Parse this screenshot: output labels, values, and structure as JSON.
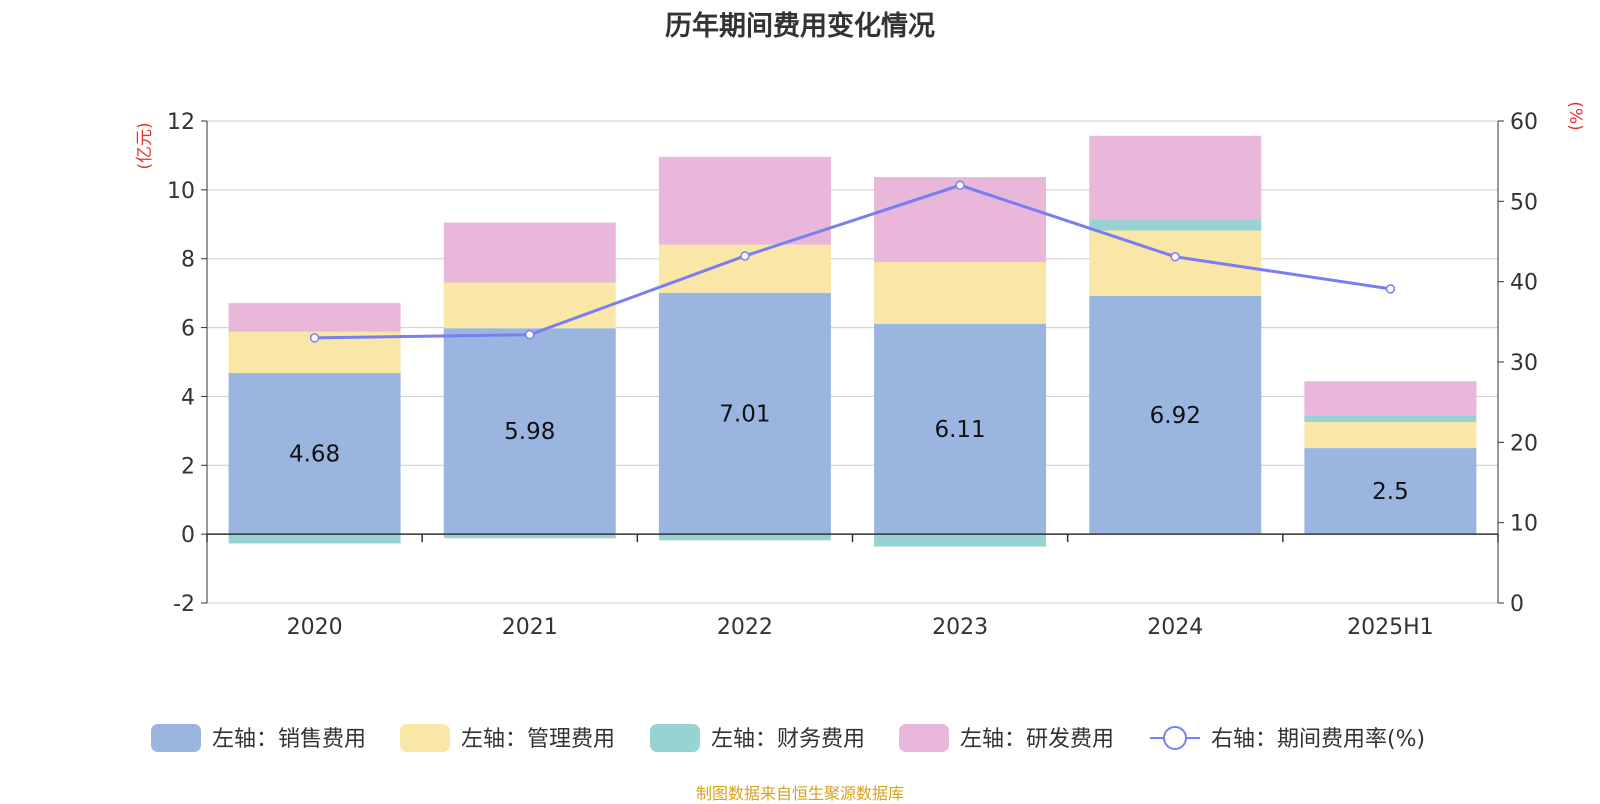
{
  "chart_data": {
    "type": "bar",
    "title": "历年期间费用变化情况",
    "categories": [
      "2020",
      "2021",
      "2022",
      "2023",
      "2024",
      "2025H1"
    ],
    "stacked": true,
    "y_left": {
      "label": "(亿元)",
      "range": [
        -2,
        12
      ],
      "ticks": [
        -2,
        0,
        2,
        4,
        6,
        8,
        10,
        12
      ]
    },
    "y_right": {
      "label": "(%)",
      "range": [
        0,
        60
      ],
      "ticks": [
        0,
        10,
        20,
        30,
        40,
        50,
        60
      ]
    },
    "grid": true,
    "legend_position": "bottom",
    "series": [
      {
        "name": "左轴：销售费用",
        "type": "bar",
        "axis": "left",
        "color": "#9ab6e0",
        "values": [
          4.68,
          5.98,
          7.01,
          6.11,
          6.92,
          2.5
        ],
        "show_labels": true
      },
      {
        "name": "左轴：管理费用",
        "type": "bar",
        "axis": "left",
        "color": "#f9e7a8",
        "values": [
          1.2,
          1.33,
          1.4,
          1.79,
          1.9,
          0.76
        ],
        "show_labels": false
      },
      {
        "name": "左轴：财务费用",
        "type": "bar",
        "axis": "left",
        "color": "#97d3d3",
        "values": [
          -0.27,
          -0.12,
          -0.18,
          -0.36,
          0.32,
          0.18
        ],
        "show_labels": false
      },
      {
        "name": "左轴：研发费用",
        "type": "bar",
        "axis": "left",
        "color": "#e8b7d9",
        "values": [
          0.83,
          1.74,
          2.55,
          2.47,
          2.43,
          1.0
        ],
        "show_labels": false
      },
      {
        "name": "右轴：期间费用率(%)",
        "type": "line",
        "axis": "right",
        "color": "#7b7ef0",
        "values": [
          33.0,
          33.4,
          43.2,
          52.0,
          43.1,
          39.1
        ],
        "show_labels": false
      }
    ]
  },
  "source_text": "制图数据来自恒生聚源数据库",
  "colors": {
    "axis_label": "#e8312f",
    "source": "#d9a11c",
    "title": "#333333",
    "tick": "#333333"
  }
}
